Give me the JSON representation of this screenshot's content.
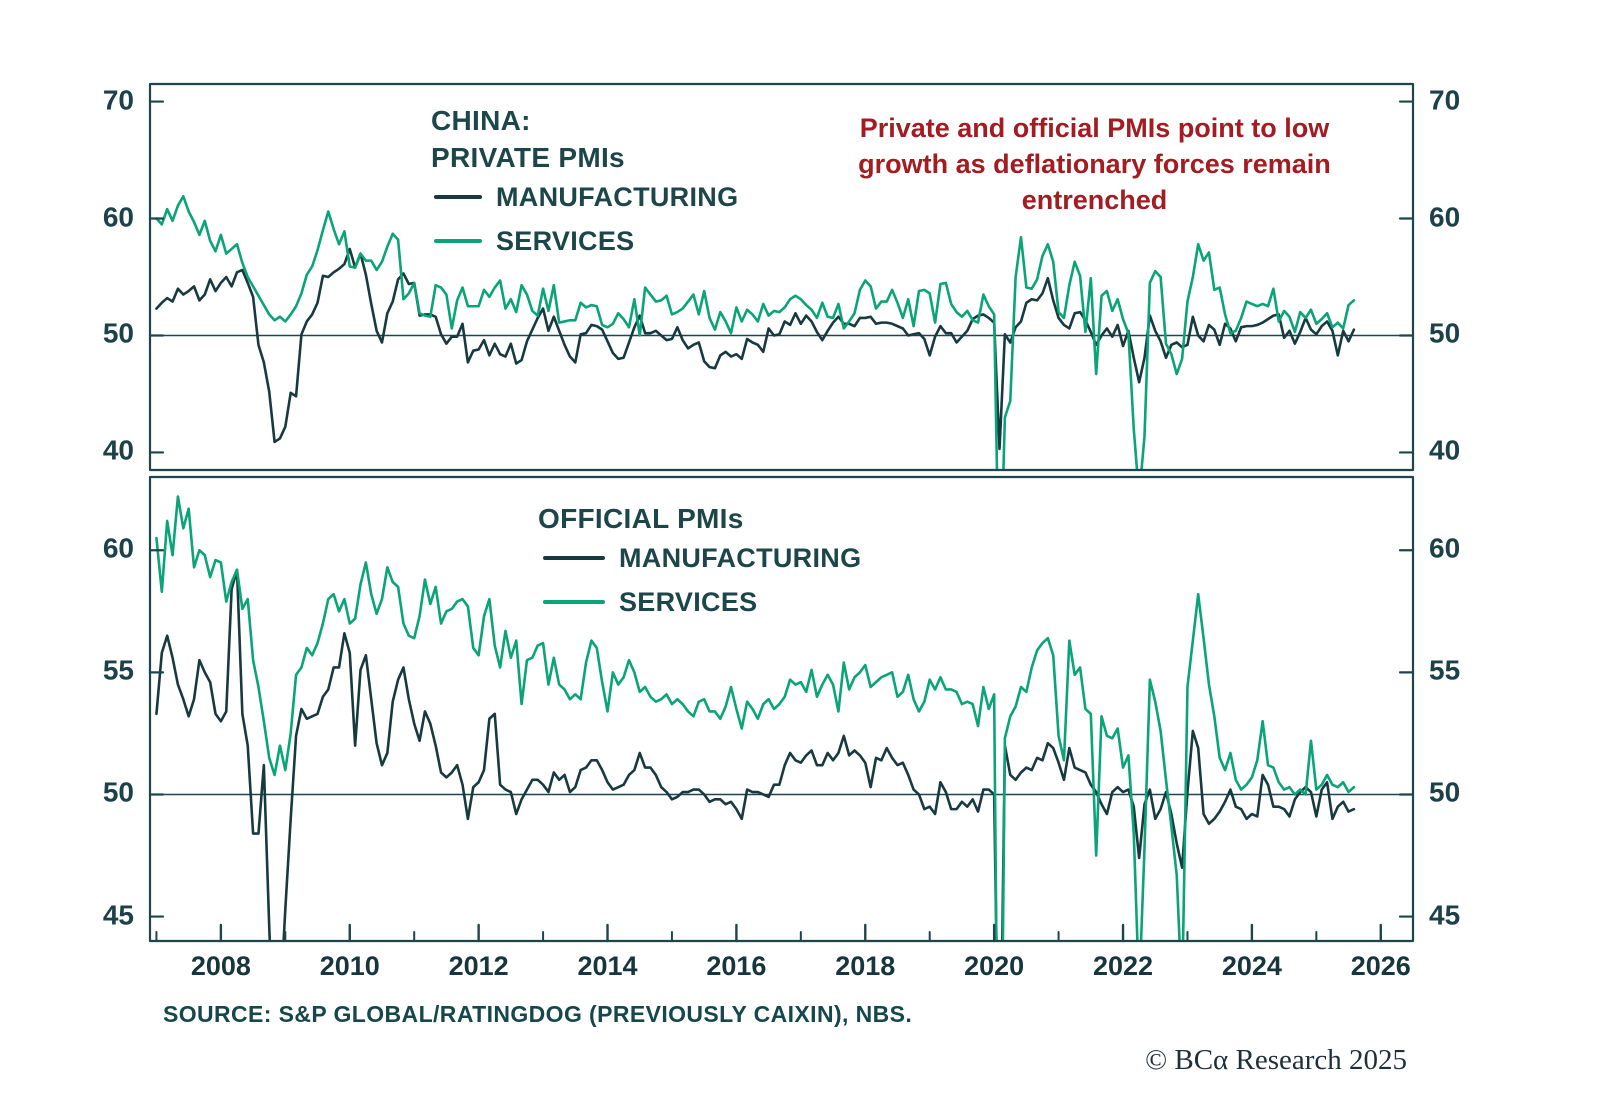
{
  "colors": {
    "axis": "#1f454c",
    "text": "#1c464a",
    "annotation": "#a21c21",
    "manufacturing": "#173a40",
    "services": "#0aa478",
    "credit": "#1e2f3c"
  },
  "headings": {
    "private_line1": "CHINA:",
    "private_line2": "PRIVATE PMIs",
    "official": "OFFICIAL PMIs"
  },
  "annotation": {
    "text": "Private and official PMIs point to low growth as deflationary forces remain entrenched"
  },
  "source": "SOURCE: S&P GLOBAL/RATINGDOG (PREVIOUSLY CAIXIN), NBS.",
  "credit": "© BCα Research 2025",
  "x_axis": {
    "xlim": [
      2006.9,
      2026.5
    ],
    "ticks": [
      2008,
      2010,
      2012,
      2014,
      2016,
      2018,
      2020,
      2022,
      2024,
      2026
    ]
  },
  "chart_data": [
    {
      "type": "line",
      "title": "CHINA: PRIVATE PMIs",
      "x_start": 2007.0,
      "x_step": "monthly",
      "ylim": [
        38.5,
        71.5
      ],
      "yticks": [
        40,
        50,
        60,
        70
      ],
      "reference_line": 50,
      "grid": false,
      "legend_position": "top-left-inside",
      "series": [
        {
          "name": "MANUFACTURING",
          "color": "#173a40",
          "values": [
            52.3,
            52.8,
            53.2,
            52.9,
            54.0,
            53.5,
            53.8,
            54.2,
            53.0,
            53.5,
            54.8,
            53.8,
            54.5,
            55.0,
            54.2,
            55.4,
            55.6,
            54.5,
            53.3,
            49.2,
            47.7,
            45.2,
            40.9,
            41.2,
            42.2,
            45.1,
            44.8,
            50.1,
            51.2,
            51.8,
            52.8,
            55.1,
            55.0,
            55.4,
            55.7,
            56.1,
            57.4,
            55.8,
            57.0,
            55.2,
            52.7,
            50.4,
            49.4,
            51.9,
            52.9,
            54.8,
            55.3,
            54.4,
            54.5,
            51.7,
            51.8,
            51.8,
            51.6,
            50.1,
            49.3,
            49.9,
            49.9,
            51.0,
            47.7,
            48.7,
            48.8,
            49.6,
            48.3,
            49.3,
            48.4,
            48.2,
            49.3,
            47.6,
            47.9,
            49.5,
            50.5,
            51.5,
            52.3,
            50.4,
            51.6,
            50.4,
            49.2,
            48.2,
            47.7,
            50.1,
            50.2,
            50.9,
            50.8,
            50.5,
            49.5,
            48.5,
            48.0,
            48.1,
            49.4,
            50.7,
            51.7,
            50.2,
            50.2,
            50.4,
            50.0,
            49.6,
            49.7,
            50.7,
            49.6,
            48.9,
            49.2,
            49.4,
            47.8,
            47.3,
            47.2,
            48.3,
            48.6,
            48.2,
            48.4,
            48.0,
            49.7,
            49.4,
            49.2,
            48.6,
            50.6,
            50.0,
            50.1,
            51.2,
            50.9,
            51.9,
            51.0,
            51.7,
            51.2,
            50.3,
            49.6,
            50.4,
            51.1,
            51.6,
            51.0,
            51.0,
            50.8,
            51.5,
            51.5,
            51.6,
            51.0,
            51.1,
            51.1,
            51.0,
            50.8,
            50.6,
            50.0,
            50.1,
            50.2,
            49.7,
            48.3,
            49.9,
            50.8,
            50.2,
            50.2,
            49.4,
            49.9,
            50.4,
            51.4,
            51.7,
            51.8,
            51.5,
            51.1,
            40.3,
            50.1,
            49.4,
            50.7,
            51.2,
            52.8,
            53.1,
            53.0,
            53.6,
            54.9,
            53.0,
            51.5,
            50.9,
            50.6,
            51.9,
            52.0,
            51.3,
            50.3,
            49.2,
            50.0,
            50.6,
            49.9,
            50.9,
            49.1,
            50.4,
            48.1,
            46.0,
            48.1,
            51.7,
            50.4,
            49.5,
            48.1,
            49.2,
            49.4,
            49.0,
            49.2,
            51.6,
            50.0,
            49.5,
            50.9,
            50.5,
            49.2,
            51.0,
            50.6,
            49.5,
            50.7,
            50.8,
            50.8,
            50.9,
            51.1,
            51.4,
            51.7,
            51.8,
            49.8,
            50.4,
            49.3,
            50.3,
            51.5,
            50.5,
            50.1,
            50.8,
            51.2,
            50.4,
            48.3,
            50.4,
            49.5,
            50.5
          ]
        },
        {
          "name": "SERVICES",
          "color": "#0aa478",
          "values": [
            60.0,
            59.5,
            60.8,
            59.8,
            61.1,
            61.9,
            60.6,
            59.7,
            58.6,
            59.8,
            58.1,
            57.2,
            58.6,
            57.0,
            57.4,
            57.8,
            56.2,
            55.0,
            54.2,
            53.4,
            52.6,
            51.8,
            51.3,
            51.6,
            51.2,
            51.8,
            52.5,
            53.6,
            55.2,
            55.9,
            57.3,
            59.0,
            60.6,
            59.1,
            57.8,
            58.9,
            55.9,
            55.8,
            57.0,
            56.4,
            56.4,
            55.6,
            56.3,
            57.6,
            58.7,
            58.2,
            53.1,
            53.6,
            54.5,
            51.9,
            51.7,
            51.6,
            54.3,
            54.1,
            53.5,
            50.6,
            53.0,
            54.1,
            52.5,
            52.5,
            52.5,
            53.9,
            53.3,
            54.1,
            54.7,
            52.3,
            53.1,
            52.0,
            54.3,
            53.5,
            52.1,
            51.7,
            54.0,
            52.1,
            54.3,
            51.1,
            51.2,
            51.3,
            51.3,
            52.8,
            52.4,
            52.6,
            52.5,
            50.9,
            50.7,
            51.0,
            51.9,
            51.4,
            50.7,
            53.1,
            50.0,
            54.1,
            53.5,
            52.9,
            53.0,
            53.4,
            51.8,
            52.0,
            52.3,
            52.9,
            53.5,
            51.8,
            53.8,
            51.5,
            50.5,
            52.0,
            51.2,
            50.2,
            52.4,
            51.2,
            52.2,
            51.8,
            51.2,
            52.7,
            51.7,
            52.1,
            52.0,
            52.4,
            53.1,
            53.4,
            53.1,
            52.6,
            52.2,
            51.5,
            52.8,
            51.6,
            51.5,
            52.7,
            50.6,
            51.2,
            51.9,
            53.9,
            54.7,
            54.2,
            52.3,
            52.9,
            52.9,
            53.9,
            52.8,
            51.5,
            53.1,
            50.8,
            53.8,
            53.9,
            53.6,
            51.1,
            54.4,
            54.5,
            52.7,
            52.0,
            51.6,
            52.1,
            51.3,
            51.1,
            53.5,
            52.5,
            51.8,
            26.5,
            43.0,
            44.4,
            55.0,
            58.4,
            54.1,
            54.0,
            54.8,
            56.8,
            57.8,
            56.3,
            52.0,
            51.5,
            54.3,
            56.3,
            55.1,
            50.3,
            54.9,
            46.7,
            53.4,
            53.8,
            52.1,
            53.1,
            51.4,
            50.2,
            42.0,
            36.2,
            41.4,
            54.5,
            55.5,
            55.0,
            49.3,
            48.4,
            46.7,
            48.0,
            52.9,
            55.0,
            57.8,
            56.4,
            57.1,
            53.9,
            54.1,
            51.8,
            50.2,
            50.4,
            51.5,
            52.9,
            52.7,
            52.5,
            52.7,
            52.5,
            54.0,
            51.2,
            52.1,
            51.6,
            50.3,
            52.0,
            51.5,
            52.2,
            51.0,
            51.4,
            51.9,
            50.7,
            51.1,
            50.6,
            52.6,
            53.0
          ]
        }
      ]
    },
    {
      "type": "line",
      "title": "OFFICIAL PMIs",
      "x_start": 2007.0,
      "x_step": "monthly",
      "ylim": [
        44,
        63
      ],
      "yticks": [
        45,
        50,
        55,
        60
      ],
      "reference_line": 50,
      "grid": false,
      "legend_position": "top-center-inside",
      "series": [
        {
          "name": "MANUFACTURING",
          "color": "#173a40",
          "values": [
            53.3,
            55.8,
            56.5,
            55.6,
            54.5,
            53.9,
            53.2,
            53.9,
            55.5,
            55.0,
            54.6,
            53.3,
            53.0,
            53.4,
            58.4,
            59.2,
            53.3,
            52.0,
            48.4,
            48.4,
            51.2,
            44.6,
            38.8,
            41.2,
            45.3,
            49.0,
            52.4,
            53.5,
            53.1,
            53.2,
            53.3,
            54.0,
            54.3,
            55.2,
            55.2,
            56.6,
            55.8,
            52.0,
            55.1,
            55.7,
            53.9,
            52.1,
            51.2,
            51.7,
            53.8,
            54.7,
            55.2,
            53.9,
            52.9,
            52.2,
            53.4,
            52.9,
            52.0,
            50.9,
            50.7,
            50.9,
            51.2,
            50.4,
            49.0,
            50.3,
            50.5,
            51.0,
            53.1,
            53.3,
            50.4,
            50.2,
            50.1,
            49.2,
            49.8,
            50.2,
            50.6,
            50.6,
            50.4,
            50.1,
            50.9,
            50.6,
            50.8,
            50.1,
            50.3,
            51.0,
            51.1,
            51.4,
            51.4,
            51.0,
            50.5,
            50.2,
            50.3,
            50.4,
            50.8,
            51.0,
            51.7,
            51.1,
            51.1,
            50.8,
            50.3,
            50.1,
            49.8,
            49.9,
            50.1,
            50.1,
            50.2,
            50.2,
            50.0,
            49.7,
            49.8,
            49.8,
            49.6,
            49.7,
            49.4,
            49.0,
            50.2,
            50.1,
            50.1,
            50.0,
            49.9,
            50.4,
            50.4,
            51.2,
            51.7,
            51.4,
            51.3,
            51.6,
            51.8,
            51.2,
            51.2,
            51.7,
            51.4,
            51.7,
            52.4,
            51.6,
            51.8,
            51.6,
            51.3,
            50.3,
            51.5,
            51.4,
            51.9,
            51.5,
            51.2,
            51.3,
            50.8,
            50.2,
            50.0,
            49.4,
            49.5,
            49.2,
            50.5,
            50.1,
            49.4,
            49.4,
            49.7,
            49.5,
            49.8,
            49.3,
            50.2,
            50.2,
            50.0,
            35.7,
            52.0,
            50.8,
            50.6,
            50.9,
            51.1,
            51.0,
            51.5,
            51.4,
            52.1,
            51.9,
            51.3,
            50.6,
            51.9,
            51.1,
            51.0,
            50.9,
            50.4,
            50.1,
            49.6,
            49.2,
            50.1,
            50.3,
            50.1,
            50.2,
            49.5,
            47.4,
            49.6,
            50.2,
            49.0,
            49.4,
            50.1,
            49.2,
            48.0,
            47.0,
            50.1,
            52.6,
            51.9,
            49.2,
            48.8,
            49.0,
            49.3,
            49.7,
            50.2,
            49.5,
            49.4,
            49.0,
            49.2,
            49.1,
            50.8,
            50.4,
            49.5,
            49.5,
            49.4,
            49.1,
            49.8,
            50.1,
            50.3,
            50.1,
            49.1,
            50.2,
            50.5,
            49.0,
            49.5,
            49.7,
            49.3,
            49.4
          ]
        },
        {
          "name": "SERVICES",
          "color": "#0aa478",
          "values": [
            60.5,
            58.3,
            61.2,
            59.8,
            62.2,
            60.9,
            61.7,
            59.3,
            60.0,
            59.8,
            58.9,
            59.6,
            59.5,
            57.9,
            58.7,
            59.2,
            57.6,
            58.0,
            55.5,
            54.4,
            53.0,
            51.5,
            50.8,
            52.0,
            51.0,
            52.5,
            54.9,
            55.2,
            56.0,
            55.7,
            56.2,
            57.0,
            58.0,
            58.2,
            57.5,
            58.0,
            57.0,
            57.2,
            58.6,
            59.5,
            58.2,
            57.4,
            58.0,
            59.3,
            58.7,
            58.5,
            57.0,
            56.5,
            56.4,
            57.3,
            58.8,
            57.8,
            58.5,
            57.0,
            57.5,
            57.6,
            57.9,
            58.0,
            57.7,
            56.0,
            55.7,
            57.3,
            58.0,
            56.1,
            55.2,
            56.7,
            55.6,
            56.3,
            53.7,
            55.5,
            55.6,
            56.1,
            56.2,
            54.5,
            55.6,
            54.5,
            54.3,
            53.9,
            54.1,
            53.9,
            55.4,
            56.3,
            56.0,
            54.6,
            53.4,
            55.0,
            54.5,
            54.8,
            55.5,
            55.0,
            54.2,
            54.4,
            54.0,
            53.8,
            53.9,
            54.1,
            53.7,
            53.9,
            53.7,
            53.4,
            53.2,
            53.8,
            53.9,
            53.4,
            53.4,
            53.1,
            53.6,
            54.4,
            53.5,
            52.7,
            53.8,
            53.5,
            53.1,
            53.7,
            53.9,
            53.5,
            53.7,
            54.0,
            54.7,
            54.5,
            54.6,
            54.2,
            55.1,
            54.0,
            54.5,
            54.9,
            54.5,
            53.4,
            55.4,
            54.3,
            54.8,
            55.0,
            55.3,
            54.4,
            54.6,
            54.8,
            54.9,
            55.0,
            54.0,
            54.2,
            54.9,
            53.9,
            53.4,
            53.8,
            54.7,
            54.3,
            54.8,
            54.3,
            54.3,
            54.2,
            53.7,
            53.8,
            53.7,
            52.8,
            54.4,
            53.5,
            54.1,
            29.6,
            52.3,
            53.2,
            53.6,
            54.4,
            54.2,
            55.2,
            55.9,
            56.2,
            56.4,
            55.7,
            52.4,
            51.4,
            56.3,
            54.9,
            55.2,
            53.5,
            53.3,
            47.5,
            53.2,
            52.4,
            52.3,
            52.7,
            51.1,
            51.6,
            48.4,
            41.9,
            47.8,
            54.7,
            53.8,
            52.6,
            50.6,
            48.7,
            46.7,
            41.6,
            54.4,
            56.3,
            58.2,
            56.4,
            54.5,
            53.2,
            51.5,
            51.0,
            51.7,
            50.6,
            50.2,
            50.4,
            50.7,
            51.4,
            53.0,
            51.2,
            51.1,
            50.5,
            50.2,
            50.3,
            50.0,
            50.2,
            50.0,
            52.2,
            50.2,
            50.4,
            50.8,
            50.4,
            50.3,
            50.5,
            50.1,
            50.3
          ]
        }
      ]
    }
  ]
}
